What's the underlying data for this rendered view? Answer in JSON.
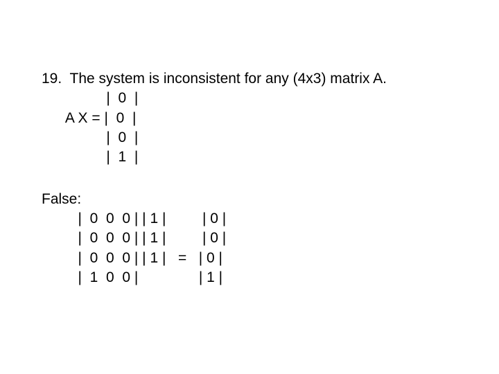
{
  "problem": {
    "number": "19.",
    "statement": "The system is inconsistent for any (4x3) matrix A.",
    "equation_label": "A X =",
    "vector_rows": [
      "0",
      "0",
      "0",
      "1"
    ]
  },
  "answer": {
    "label": "False:",
    "A_rows": [
      [
        "0",
        "0",
        "0"
      ],
      [
        "0",
        "0",
        "0"
      ],
      [
        "0",
        "0",
        "0"
      ],
      [
        "1",
        "0",
        "0"
      ]
    ],
    "X_rows": [
      "1",
      "1",
      "1"
    ],
    "eq": "=",
    "B_rows": [
      "0",
      "0",
      "0",
      "1"
    ]
  },
  "style": {
    "background_color": "#ffffff",
    "text_color": "#000000",
    "font_size_pt": 16
  }
}
